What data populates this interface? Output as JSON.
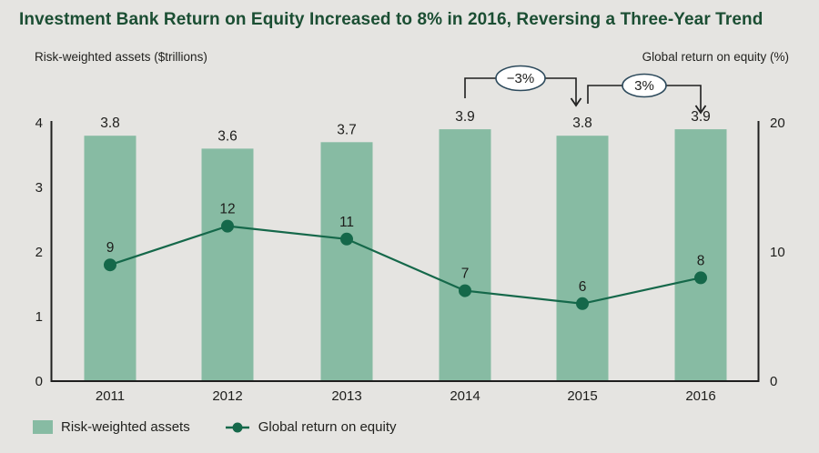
{
  "title": "Investment Bank Return on Equity Increased to 8% in 2016, Reversing a Three-Year Trend",
  "axis_captions": {
    "left": "Risk-weighted assets ($trillions)",
    "right": "Global return on equity (%)"
  },
  "chart_data": {
    "type": "bar+line combo",
    "categories": [
      "2011",
      "2012",
      "2013",
      "2014",
      "2015",
      "2016"
    ],
    "series": [
      {
        "name": "Risk-weighted assets",
        "chart_type": "bar",
        "axis": "left",
        "values": [
          3.8,
          3.6,
          3.7,
          3.9,
          3.8,
          3.9
        ]
      },
      {
        "name": "Global return on equity",
        "chart_type": "line",
        "axis": "right",
        "values": [
          9,
          12,
          11,
          7,
          6,
          8
        ]
      }
    ],
    "left_axis": {
      "label": "Risk-weighted assets ($trillions)",
      "range": [
        0,
        4
      ],
      "ticks": [
        0,
        1,
        2,
        3,
        4
      ]
    },
    "right_axis": {
      "label": "Global return on equity (%)",
      "range": [
        0,
        20
      ],
      "ticks": [
        0,
        10,
        20
      ]
    },
    "annotations": [
      {
        "label": "−3%",
        "from": "2014",
        "to": "2015"
      },
      {
        "label": "3%",
        "from": "2015",
        "to": "2016"
      }
    ],
    "grid": false,
    "legend_position": "bottom-left",
    "data_labels_shown": true
  },
  "legend": [
    {
      "label": "Risk-weighted assets",
      "marker": "square"
    },
    {
      "label": "Global return on equity",
      "marker": "line-dot"
    }
  ],
  "colors": {
    "background": "#e5e4e1",
    "bar": "#87bba3",
    "line": "#15684a",
    "title": "#1b4e33",
    "text": "#1d1d1b",
    "axis": "#1f1f1f",
    "annotation_border": "#2d4a5c",
    "annotation_fill": "#ffffff"
  }
}
